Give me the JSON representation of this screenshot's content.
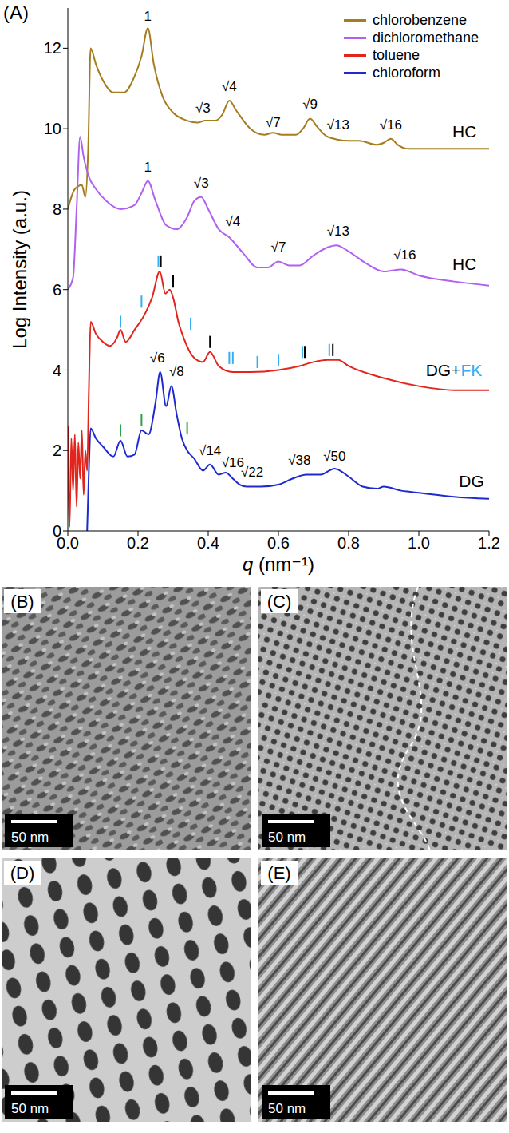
{
  "chart_data": {
    "type": "line",
    "panel_label": "(A)",
    "x_label": "q (nm⁻¹)",
    "y_label": "Log Intensity (a.u.)",
    "xlim": [
      0,
      1.2
    ],
    "xticks": [
      {
        "value": 0,
        "label": "0.0"
      },
      0.2,
      0.4,
      0.6,
      0.8,
      {
        "value": 1,
        "label": "1.0"
      },
      1.2
    ],
    "ylim": [
      0,
      13
    ],
    "yticks": [
      0,
      2,
      4,
      6,
      8,
      10,
      12
    ],
    "grid": false,
    "legend": "top-right",
    "series": [
      {
        "name": "chlorobenzene",
        "color": "#a47d1f",
        "x": [
          0.0,
          0.02,
          0.04,
          0.05,
          0.058,
          0.065,
          0.08,
          0.1,
          0.13,
          0.16,
          0.19,
          0.21,
          0.228,
          0.245,
          0.27,
          0.3,
          0.34,
          0.37,
          0.39,
          0.42,
          0.44,
          0.46,
          0.48,
          0.52,
          0.56,
          0.585,
          0.61,
          0.65,
          0.67,
          0.69,
          0.71,
          0.74,
          0.8,
          0.83,
          0.88,
          0.9,
          0.92,
          0.94,
          0.97,
          1.05,
          1.2
        ],
        "values": [
          8.0,
          8.5,
          8.6,
          8.3,
          9.5,
          12.0,
          11.6,
          11.2,
          10.9,
          10.9,
          11.3,
          11.8,
          12.5,
          11.6,
          10.8,
          10.4,
          10.2,
          10.15,
          10.2,
          10.2,
          10.35,
          10.7,
          10.45,
          10.0,
          9.85,
          9.9,
          9.85,
          9.85,
          10.0,
          10.25,
          10.05,
          9.8,
          9.7,
          9.7,
          9.6,
          9.65,
          9.75,
          9.6,
          9.5,
          9.5,
          9.5
        ]
      },
      {
        "name": "dichloromethane",
        "color": "#b061f0",
        "x": [
          0.0,
          0.015,
          0.025,
          0.035,
          0.045,
          0.06,
          0.08,
          0.11,
          0.15,
          0.19,
          0.21,
          0.228,
          0.25,
          0.28,
          0.31,
          0.34,
          0.36,
          0.38,
          0.4,
          0.43,
          0.46,
          0.5,
          0.54,
          0.57,
          0.6,
          0.63,
          0.66,
          0.7,
          0.74,
          0.765,
          0.8,
          0.85,
          0.9,
          0.95,
          1.0,
          1.1,
          1.2
        ],
        "values": [
          6.0,
          6.3,
          8.0,
          9.8,
          9.3,
          8.8,
          8.5,
          8.2,
          8.0,
          8.1,
          8.4,
          8.7,
          8.2,
          7.6,
          7.5,
          7.8,
          8.2,
          8.3,
          8.0,
          7.5,
          7.3,
          6.9,
          6.55,
          6.55,
          6.7,
          6.6,
          6.6,
          6.85,
          7.05,
          7.1,
          6.95,
          6.65,
          6.45,
          6.5,
          6.35,
          6.2,
          6.1
        ]
      },
      {
        "name": "toluene",
        "color": "#e3241c",
        "x": [
          0.0,
          0.005,
          0.01,
          0.015,
          0.02,
          0.025,
          0.03,
          0.035,
          0.04,
          0.045,
          0.05,
          0.055,
          0.06,
          0.065,
          0.08,
          0.1,
          0.12,
          0.14,
          0.15,
          0.165,
          0.19,
          0.22,
          0.24,
          0.262,
          0.278,
          0.29,
          0.3,
          0.315,
          0.33,
          0.36,
          0.385,
          0.405,
          0.43,
          0.47,
          0.52,
          0.6,
          0.66,
          0.7,
          0.74,
          0.77,
          0.8,
          0.9,
          1.0,
          1.1,
          1.2
        ],
        "values": [
          2.6,
          0.1,
          2.3,
          1.0,
          2.4,
          0.6,
          2.2,
          1.3,
          2.5,
          0.9,
          2.0,
          1.5,
          3.5,
          5.2,
          4.9,
          4.7,
          4.6,
          4.8,
          5.0,
          4.7,
          5.0,
          5.4,
          5.8,
          6.45,
          5.9,
          6.0,
          5.8,
          5.2,
          4.8,
          4.3,
          4.2,
          4.45,
          4.1,
          3.95,
          3.95,
          4.0,
          4.1,
          4.2,
          4.25,
          4.25,
          4.1,
          3.8,
          3.6,
          3.5,
          3.5
        ]
      },
      {
        "name": "chloroform",
        "color": "#1e2ad0",
        "x": [
          0.055,
          0.06,
          0.065,
          0.08,
          0.1,
          0.13,
          0.15,
          0.17,
          0.19,
          0.21,
          0.23,
          0.25,
          0.263,
          0.28,
          0.295,
          0.31,
          0.325,
          0.34,
          0.36,
          0.385,
          0.405,
          0.43,
          0.45,
          0.47,
          0.49,
          0.51,
          0.55,
          0.6,
          0.64,
          0.68,
          0.72,
          0.76,
          0.8,
          0.84,
          0.88,
          0.9,
          0.95,
          1.0,
          1.1,
          1.2
        ],
        "values": [
          0.0,
          1.5,
          2.55,
          2.3,
          2.1,
          1.85,
          2.25,
          1.85,
          1.9,
          2.5,
          2.4,
          3.2,
          3.95,
          3.1,
          3.6,
          2.9,
          2.3,
          2.0,
          1.8,
          1.5,
          1.65,
          1.4,
          1.45,
          1.3,
          1.15,
          1.1,
          1.1,
          1.15,
          1.3,
          1.4,
          1.4,
          1.55,
          1.35,
          1.1,
          1.05,
          1.1,
          1.0,
          0.95,
          0.85,
          0.8
        ]
      }
    ],
    "annotations": [
      {
        "text": "1",
        "x": 0.228,
        "y": 12.8,
        "color": "#000000"
      },
      {
        "text": "√3",
        "x": 0.385,
        "y": 10.5,
        "color": "#000000"
      },
      {
        "text": "√4",
        "x": 0.46,
        "y": 11.05,
        "color": "#000000"
      },
      {
        "text": "√7",
        "x": 0.585,
        "y": 10.15,
        "color": "#000000"
      },
      {
        "text": "√9",
        "x": 0.69,
        "y": 10.6,
        "color": "#000000"
      },
      {
        "text": "√13",
        "x": 0.77,
        "y": 10.1,
        "color": "#000000"
      },
      {
        "text": "√16",
        "x": 0.92,
        "y": 10.1,
        "color": "#000000"
      },
      {
        "text": "1",
        "x": 0.228,
        "y": 9.05,
        "color": "#000000"
      },
      {
        "text": "√3",
        "x": 0.38,
        "y": 8.65,
        "color": "#000000"
      },
      {
        "text": "√4",
        "x": 0.47,
        "y": 7.7,
        "color": "#000000"
      },
      {
        "text": "√7",
        "x": 0.6,
        "y": 7.05,
        "color": "#000000"
      },
      {
        "text": "√13",
        "x": 0.77,
        "y": 7.45,
        "color": "#000000"
      },
      {
        "text": "√16",
        "x": 0.96,
        "y": 6.85,
        "color": "#000000"
      },
      {
        "text": "√6",
        "x": 0.255,
        "y": 4.3,
        "color": "#000000"
      },
      {
        "text": "√8",
        "x": 0.31,
        "y": 3.95,
        "color": "#000000"
      },
      {
        "text": "√14",
        "x": 0.405,
        "y": 2.0,
        "color": "#000000"
      },
      {
        "text": "√16",
        "x": 0.47,
        "y": 1.7,
        "color": "#000000"
      },
      {
        "text": "√22",
        "x": 0.525,
        "y": 1.45,
        "color": "#000000"
      },
      {
        "text": "√38",
        "x": 0.66,
        "y": 1.75,
        "color": "#000000"
      },
      {
        "text": "√50",
        "x": 0.76,
        "y": 1.85,
        "color": "#000000"
      }
    ],
    "curve_labels": [
      {
        "parts": [
          {
            "text": "HC",
            "color": "#000000"
          }
        ],
        "x": 1.13,
        "y": 9.95
      },
      {
        "parts": [
          {
            "text": "HC",
            "color": "#000000"
          }
        ],
        "x": 1.13,
        "y": 6.65
      },
      {
        "parts": [
          {
            "text": "DG+",
            "color": "#000000"
          },
          {
            "text": "FK",
            "color": "#33aef0"
          }
        ],
        "x": 1.1,
        "y": 4.0
      },
      {
        "parts": [
          {
            "text": "DG",
            "color": "#000000"
          }
        ],
        "x": 1.15,
        "y": 1.25
      }
    ],
    "peak_marks": [
      {
        "x": 0.15,
        "y": 5.05,
        "color": "#33aef0"
      },
      {
        "x": 0.21,
        "y": 5.55,
        "color": "#33aef0"
      },
      {
        "x": 0.258,
        "y": 6.55,
        "color": "#33aef0"
      },
      {
        "x": 0.35,
        "y": 5.0,
        "color": "#33aef0"
      },
      {
        "x": 0.46,
        "y": 4.15,
        "color": "#33aef0"
      },
      {
        "x": 0.47,
        "y": 4.15,
        "color": "#33aef0"
      },
      {
        "x": 0.54,
        "y": 4.05,
        "color": "#33aef0"
      },
      {
        "x": 0.6,
        "y": 4.1,
        "color": "#33aef0"
      },
      {
        "x": 0.668,
        "y": 4.3,
        "color": "#33aef0"
      },
      {
        "x": 0.745,
        "y": 4.35,
        "color": "#33aef0"
      },
      {
        "x": 0.265,
        "y": 6.55,
        "color": "#000000"
      },
      {
        "x": 0.3,
        "y": 6.05,
        "color": "#000000"
      },
      {
        "x": 0.405,
        "y": 4.55,
        "color": "#000000"
      },
      {
        "x": 0.675,
        "y": 4.3,
        "color": "#000000"
      },
      {
        "x": 0.755,
        "y": 4.35,
        "color": "#000000"
      },
      {
        "x": 0.15,
        "y": 2.35,
        "color": "#2ea043"
      },
      {
        "x": 0.21,
        "y": 2.6,
        "color": "#2ea043"
      },
      {
        "x": 0.34,
        "y": 2.4,
        "color": "#2ea043"
      }
    ]
  },
  "panels": [
    {
      "label": "(B)",
      "scale_bar": "50 nm"
    },
    {
      "label": "(C)",
      "scale_bar": "50 nm"
    },
    {
      "label": "(D)",
      "scale_bar": "50 nm"
    },
    {
      "label": "(E)",
      "scale_bar": "50 nm"
    }
  ]
}
